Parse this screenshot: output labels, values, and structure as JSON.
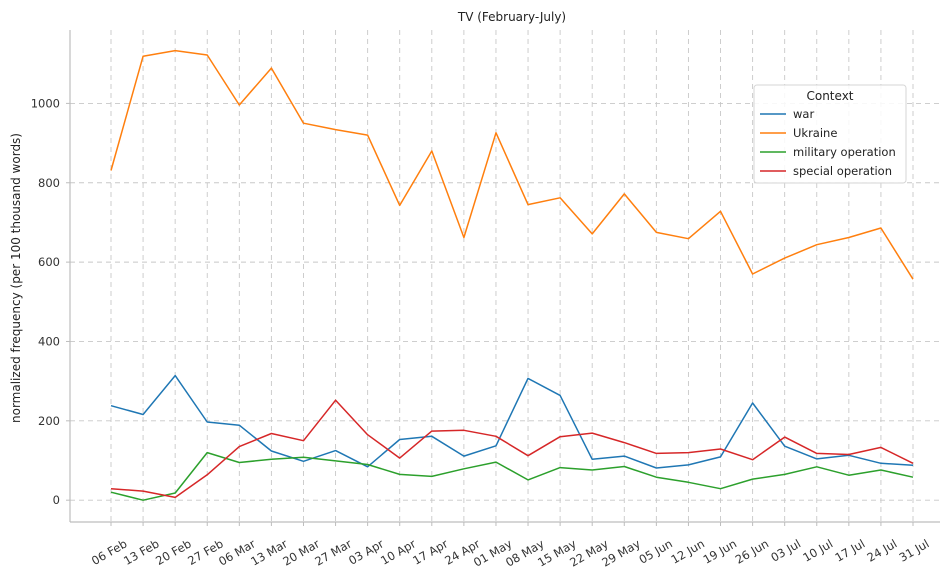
{
  "chart_data": {
    "type": "line",
    "title": "TV (February-July)",
    "xlabel": "",
    "ylabel": "normalized frequency (per 100 thousand words)",
    "ylim": [
      -55,
      1185
    ],
    "yticks": [
      0,
      200,
      400,
      600,
      800,
      1000
    ],
    "grid": true,
    "legend_title": "Context",
    "legend_position": "top-right",
    "categories": [
      "06 Feb",
      "13 Feb",
      "20 Feb",
      "27 Feb",
      "06 Mar",
      "13 Mar",
      "20 Mar",
      "27 Mar",
      "03 Apr",
      "10 Apr",
      "17 Apr",
      "24 Apr",
      "01 May",
      "08 May",
      "15 May",
      "22 May",
      "29 May",
      "05 Jun",
      "12 Jun",
      "19 Jun",
      "26 Jun",
      "03 Jul",
      "10 Jul",
      "17 Jul",
      "24 Jul",
      "31 Jul"
    ],
    "series": [
      {
        "name": "war",
        "color": "#1f77b4",
        "values": [
          238,
          216,
          314,
          197,
          189,
          124,
          98,
          125,
          84,
          153,
          161,
          111,
          137,
          307,
          264,
          103,
          111,
          81,
          89,
          109,
          245,
          136,
          104,
          113,
          93,
          88
        ]
      },
      {
        "name": "Ukraine",
        "color": "#ff7f0e",
        "values": [
          831,
          1119,
          1133,
          1122,
          996,
          1089,
          950,
          934,
          920,
          743,
          880,
          662,
          926,
          745,
          762,
          671,
          772,
          675,
          659,
          728,
          570,
          610,
          644,
          662,
          686,
          557
        ]
      },
      {
        "name": "military operation",
        "color": "#2ca02c",
        "values": [
          20,
          0,
          18,
          120,
          95,
          103,
          108,
          99,
          90,
          65,
          60,
          79,
          96,
          51,
          82,
          76,
          85,
          58,
          45,
          29,
          53,
          65,
          84,
          63,
          76,
          58
        ]
      },
      {
        "name": "special operation",
        "color": "#d62728",
        "values": [
          29,
          23,
          7,
          64,
          135,
          168,
          150,
          252,
          165,
          106,
          174,
          176,
          161,
          112,
          160,
          169,
          145,
          118,
          120,
          129,
          102,
          159,
          118,
          115,
          133,
          93
        ]
      }
    ]
  }
}
